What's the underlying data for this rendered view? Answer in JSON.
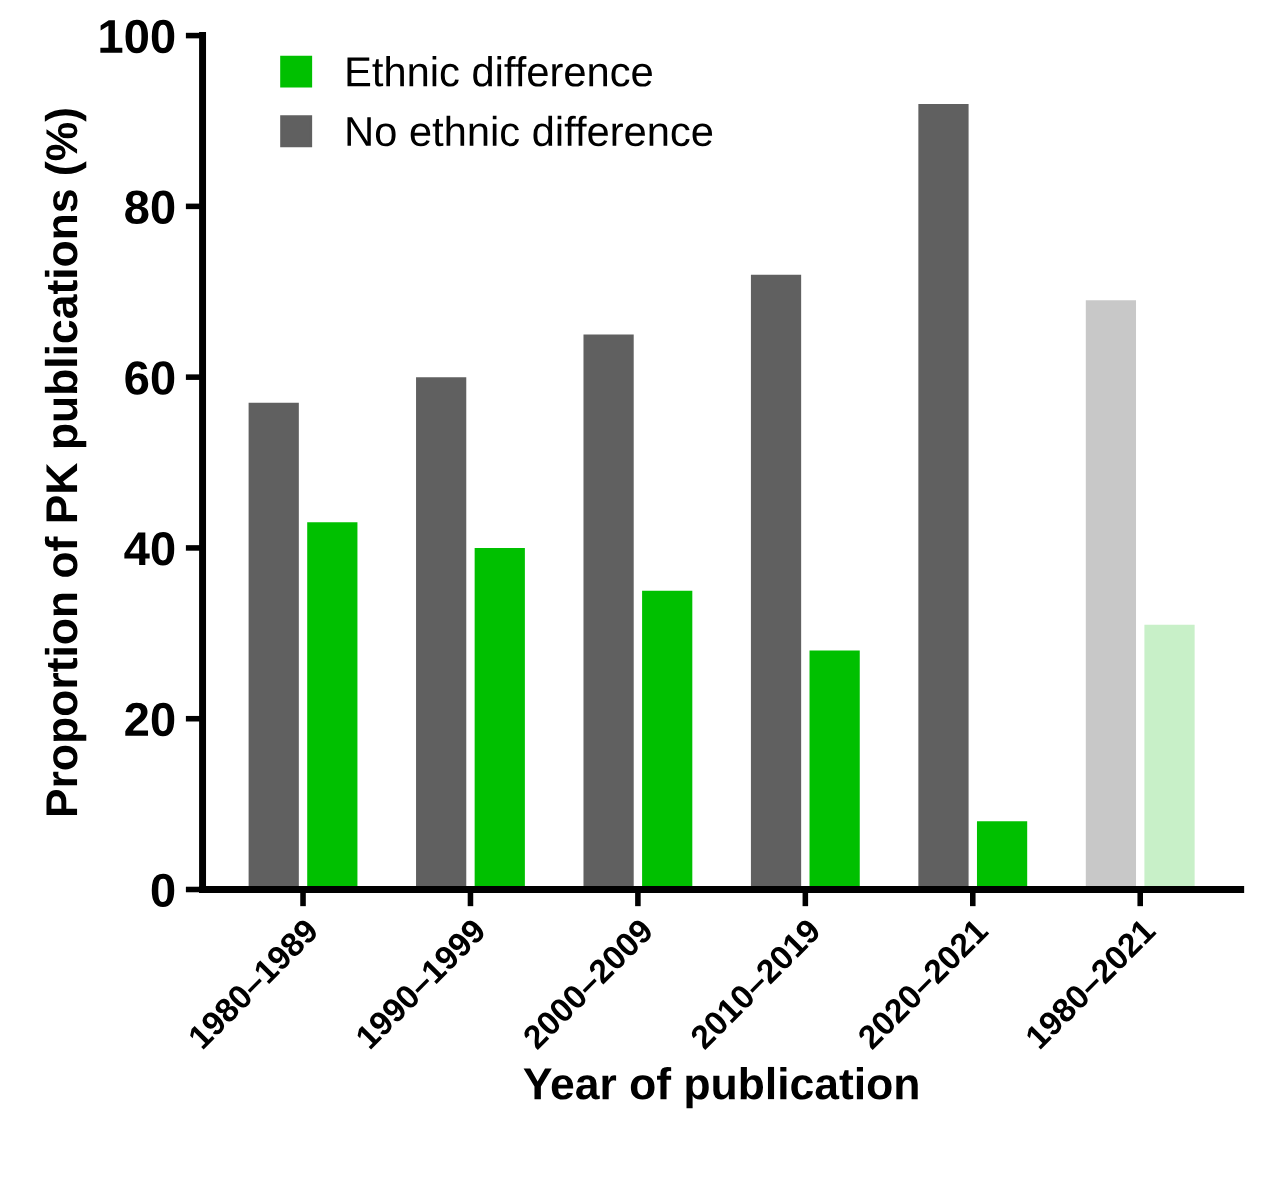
{
  "chart_data": {
    "type": "bar",
    "xlabel": "Year of publication",
    "ylabel": "Proportion of PK publications (%)",
    "categories": [
      "1980–1989",
      "1990–1999",
      "2000–2009",
      "2010–2019",
      "2020–2021",
      "1980–2021"
    ],
    "series": [
      {
        "name": "No ethnic difference",
        "color": "#606060",
        "colors": [
          "#606060",
          "#606060",
          "#606060",
          "#606060",
          "#606060",
          "#c8c8c8"
        ],
        "values": [
          57,
          60,
          65,
          72,
          92,
          69
        ]
      },
      {
        "name": "Ethnic difference",
        "color": "#00c000",
        "colors": [
          "#00c000",
          "#00c000",
          "#00c000",
          "#00c000",
          "#00c000",
          "#c8f0c8"
        ],
        "values": [
          43,
          40,
          35,
          28,
          8,
          31
        ]
      }
    ],
    "ylim": [
      0,
      100
    ],
    "yticks": [
      0,
      20,
      40,
      60,
      80,
      100
    ],
    "grid": false,
    "legend": "top left"
  }
}
